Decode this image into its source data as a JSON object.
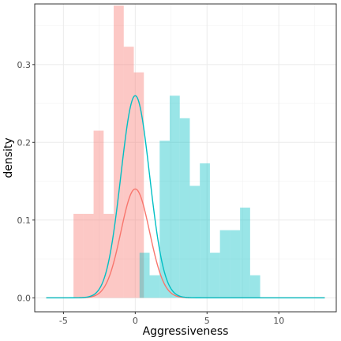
{
  "chart_data": {
    "type": "histogram+density",
    "xlabel": "Aggressiveness",
    "ylabel": "density",
    "xlim": [
      -7.0,
      14.0
    ],
    "ylim": [
      -0.018,
      0.378
    ],
    "x_ticks": [
      -5,
      0,
      5,
      10
    ],
    "x_tick_labels": [
      "-5",
      "0",
      "5",
      "10"
    ],
    "y_ticks": [
      0.0,
      0.1,
      0.2,
      0.3
    ],
    "y_tick_labels": [
      "0.0",
      "0.1",
      "0.2",
      "0.3"
    ],
    "grid": true,
    "legend": "none",
    "panel_border": true,
    "bin_width": 0.7,
    "series": [
      {
        "color": "#F8766D",
        "fill_opacity": 0.4,
        "bins_x_start": [
          -4.3,
          -3.6,
          -2.9,
          -2.2,
          -1.5,
          -0.8,
          -0.1
        ],
        "bins_density": [
          0.108,
          0.108,
          0.215,
          0.108,
          0.376,
          0.323,
          0.29
        ],
        "curve": {
          "mean": 0.0,
          "sd": 1.0,
          "peak": 0.14
        }
      },
      {
        "color": "#00BFC4",
        "fill_opacity": 0.4,
        "bins_x_start": [
          0.3,
          1.0,
          1.7,
          2.4,
          3.1,
          3.8,
          4.5,
          5.2,
          5.9,
          6.6,
          7.3,
          8.0
        ],
        "bins_density": [
          0.058,
          0.029,
          0.202,
          0.26,
          0.231,
          0.144,
          0.173,
          0.058,
          0.087,
          0.087,
          0.116,
          0.029
        ],
        "curve": {
          "mean": 0.0,
          "sd": 1.0,
          "peak": 0.26
        }
      }
    ],
    "curve_x_range": [
      -6.2,
      13.2
    ]
  }
}
